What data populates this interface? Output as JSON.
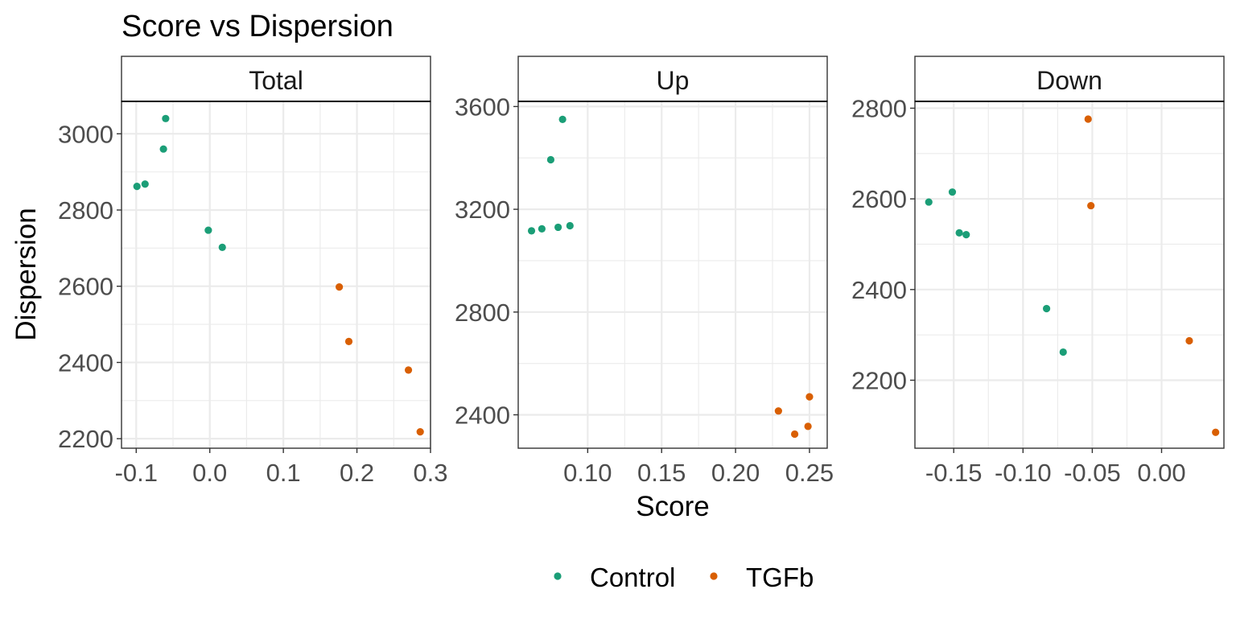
{
  "chart_data": {
    "type": "scatter",
    "title": "Score vs Dispersion",
    "xlabel": "Score",
    "ylabel": "Dispersion",
    "legend": {
      "position": "bottom",
      "entries": [
        {
          "name": "Control",
          "color": "#1b9e77"
        },
        {
          "name": "TGFb",
          "color": "#d95f02"
        }
      ]
    },
    "grid": true,
    "panels": [
      {
        "label": "Total",
        "xlim": [
          -0.12,
          0.3
        ],
        "ylim": [
          2175,
          3085
        ],
        "xticks": [
          -0.1,
          0.0,
          0.1,
          0.2,
          0.3
        ],
        "xtick_labels": [
          "-0.1",
          "0.0",
          "0.1",
          "0.2",
          "0.3"
        ],
        "yticks": [
          2200,
          2400,
          2600,
          2800,
          3000
        ],
        "ytick_labels": [
          "2200",
          "2400",
          "2600",
          "2800",
          "3000"
        ],
        "series": [
          {
            "name": "Control",
            "points": [
              [
                -0.099,
                2862
              ],
              [
                -0.088,
                2868
              ],
              [
                -0.063,
                2960
              ],
              [
                -0.06,
                3040
              ],
              [
                -0.002,
                2747
              ],
              [
                0.017,
                2702
              ]
            ]
          },
          {
            "name": "TGFb",
            "points": [
              [
                0.176,
                2598
              ],
              [
                0.189,
                2455
              ],
              [
                0.27,
                2380
              ],
              [
                0.286,
                2218
              ]
            ]
          }
        ]
      },
      {
        "label": "Up",
        "xlim": [
          0.053,
          0.262
        ],
        "ylim": [
          2270,
          3620
        ],
        "xticks": [
          0.1,
          0.15,
          0.2,
          0.25
        ],
        "xtick_labels": [
          "0.10",
          "0.15",
          "0.20",
          "0.25"
        ],
        "yticks": [
          2400,
          2800,
          3200,
          3600
        ],
        "ytick_labels": [
          "2400",
          "2800",
          "3200",
          "3600"
        ],
        "series": [
          {
            "name": "Control",
            "points": [
              [
                0.062,
                3116
              ],
              [
                0.069,
                3124
              ],
              [
                0.075,
                3393
              ],
              [
                0.08,
                3130
              ],
              [
                0.083,
                3550
              ],
              [
                0.088,
                3136
              ]
            ]
          },
          {
            "name": "TGFb",
            "points": [
              [
                0.229,
                2415
              ],
              [
                0.24,
                2325
              ],
              [
                0.249,
                2355
              ],
              [
                0.25,
                2470
              ]
            ]
          }
        ]
      },
      {
        "label": "Down",
        "xlim": [
          -0.178,
          0.045
        ],
        "ylim": [
          2050,
          2815
        ],
        "xticks": [
          -0.15,
          -0.1,
          -0.05,
          0.0
        ],
        "xtick_labels": [
          "-0.15",
          "-0.10",
          "-0.05",
          "0.00"
        ],
        "yticks": [
          2200,
          2400,
          2600,
          2800
        ],
        "ytick_labels": [
          "2200",
          "2400",
          "2600",
          "2800"
        ],
        "series": [
          {
            "name": "Control",
            "points": [
              [
                -0.168,
                2593
              ],
              [
                -0.151,
                2615
              ],
              [
                -0.146,
                2525
              ],
              [
                -0.141,
                2521
              ],
              [
                -0.083,
                2358
              ],
              [
                -0.071,
                2262
              ]
            ]
          },
          {
            "name": "TGFb",
            "points": [
              [
                -0.053,
                2776
              ],
              [
                -0.051,
                2585
              ],
              [
                0.02,
                2287
              ],
              [
                0.039,
                2085
              ]
            ]
          }
        ]
      }
    ]
  }
}
